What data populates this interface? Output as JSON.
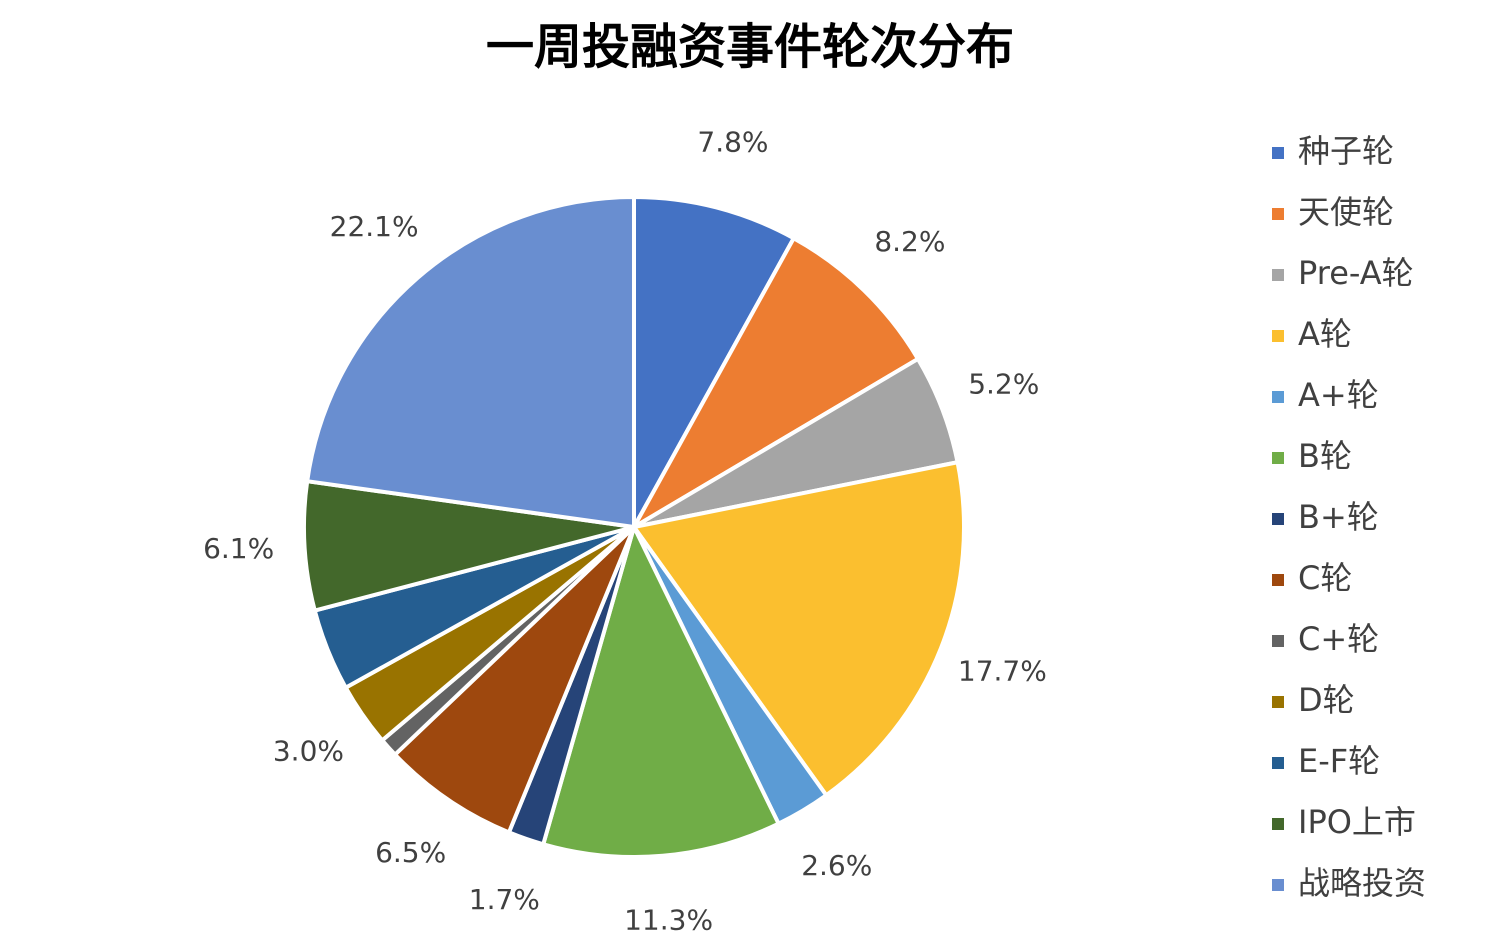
{
  "chart_data": {
    "type": "pie",
    "title": "一周投融资事件轮次分布",
    "categories": [
      "种子轮",
      "天使轮",
      "Pre-A轮",
      "A轮",
      "A+轮",
      "B轮",
      "B+轮",
      "C轮",
      "C+轮",
      "D轮",
      "E-F轮",
      "IPO上市",
      "战略投资"
    ],
    "values": [
      7.8,
      8.2,
      5.2,
      17.7,
      2.6,
      11.3,
      1.7,
      6.5,
      0.9,
      3.0,
      3.9,
      6.1,
      22.1
    ],
    "value_labels": [
      "7.8%",
      "8.2%",
      "5.2%",
      "17.7%",
      "2.6%",
      "11.3%",
      "1.7%",
      "6.5%",
      null,
      "3.0%",
      null,
      "6.1%",
      "22.1%"
    ],
    "colors": [
      "#4472c4",
      "#ed7d31",
      "#a5a5a5",
      "#fbbf2f",
      "#5b9bd5",
      "#70ad47",
      "#264478",
      "#9e480e",
      "#636363",
      "#997300",
      "#255e91",
      "#43682b",
      "#698ed0"
    ],
    "legend": "right"
  }
}
